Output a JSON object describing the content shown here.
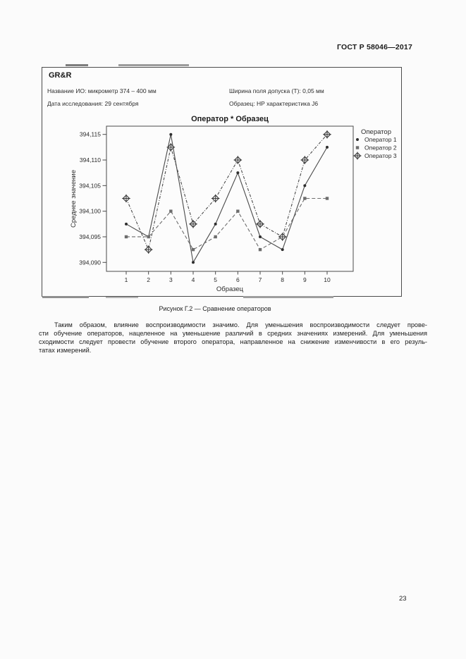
{
  "page": {
    "header_title": "ГОСТ Р 58046—2017",
    "page_number": "23",
    "figure_caption": "Рисунок Г.2 — Сравнение операторов",
    "paragraph_lines": [
      "Таким образом, влияние воспроизводимости значимо. Для уменьшения воспроизводимости следует прове-",
      "сти обучение операторов, нацеленное на уменьшение различий в средних значениях измерений. Для уменьшения",
      "сходимости следует провести обучение второго оператора, направленное на снижение изменчивости в его резуль-",
      "татах измерений."
    ]
  },
  "report": {
    "box_title": "GR&R",
    "info_left": [
      "Название ИО: микрометр 374 – 400 мм",
      "Дата исследования: 29 сентября"
    ],
    "info_right": [
      "Ширина поля допуска (Т): 0,05 мм",
      "Образец: НР характеристика J6"
    ]
  },
  "chart_data": {
    "type": "line",
    "title": "Оператор * Образец",
    "xlabel": "Образец",
    "ylabel": "Среднее значение",
    "legend_title": "Оператор",
    "legend_position": "outside-top-right",
    "grid": false,
    "categories": [
      1,
      2,
      3,
      4,
      5,
      6,
      7,
      8,
      9,
      10
    ],
    "y_ticks": [
      394.09,
      394.095,
      394.1,
      394.105,
      394.11,
      394.115
    ],
    "y_tick_labels": [
      "394,090",
      "394,095",
      "394,100",
      "394,105",
      "394,110",
      "394,115"
    ],
    "ylim": [
      394.088,
      394.117
    ],
    "series": [
      {
        "name": "Оператор 1",
        "marker": "filled-circle",
        "line_style": "solid",
        "color": "#2e2e2e",
        "line_color": "#4a4a4a",
        "values": [
          394.0975,
          394.095,
          394.115,
          394.09,
          394.0975,
          394.1075,
          394.095,
          394.0925,
          394.105,
          394.1125
        ]
      },
      {
        "name": "Оператор 2",
        "marker": "filled-square",
        "line_style": "dashed",
        "color": "#6d6d6d",
        "line_color": "#6d6d6d",
        "values": [
          394.095,
          394.095,
          394.1,
          394.0925,
          394.095,
          394.1,
          394.0925,
          394.095,
          394.1025,
          394.1025
        ]
      },
      {
        "name": "Оператор 3",
        "marker": "diamond-cross",
        "line_style": "dash-dot",
        "color": "#3a3a3a",
        "line_color": "#4a4a4a",
        "values": [
          394.1025,
          394.0925,
          394.1125,
          394.0975,
          394.1025,
          394.11,
          394.0975,
          394.095,
          394.11,
          394.115
        ]
      }
    ]
  }
}
